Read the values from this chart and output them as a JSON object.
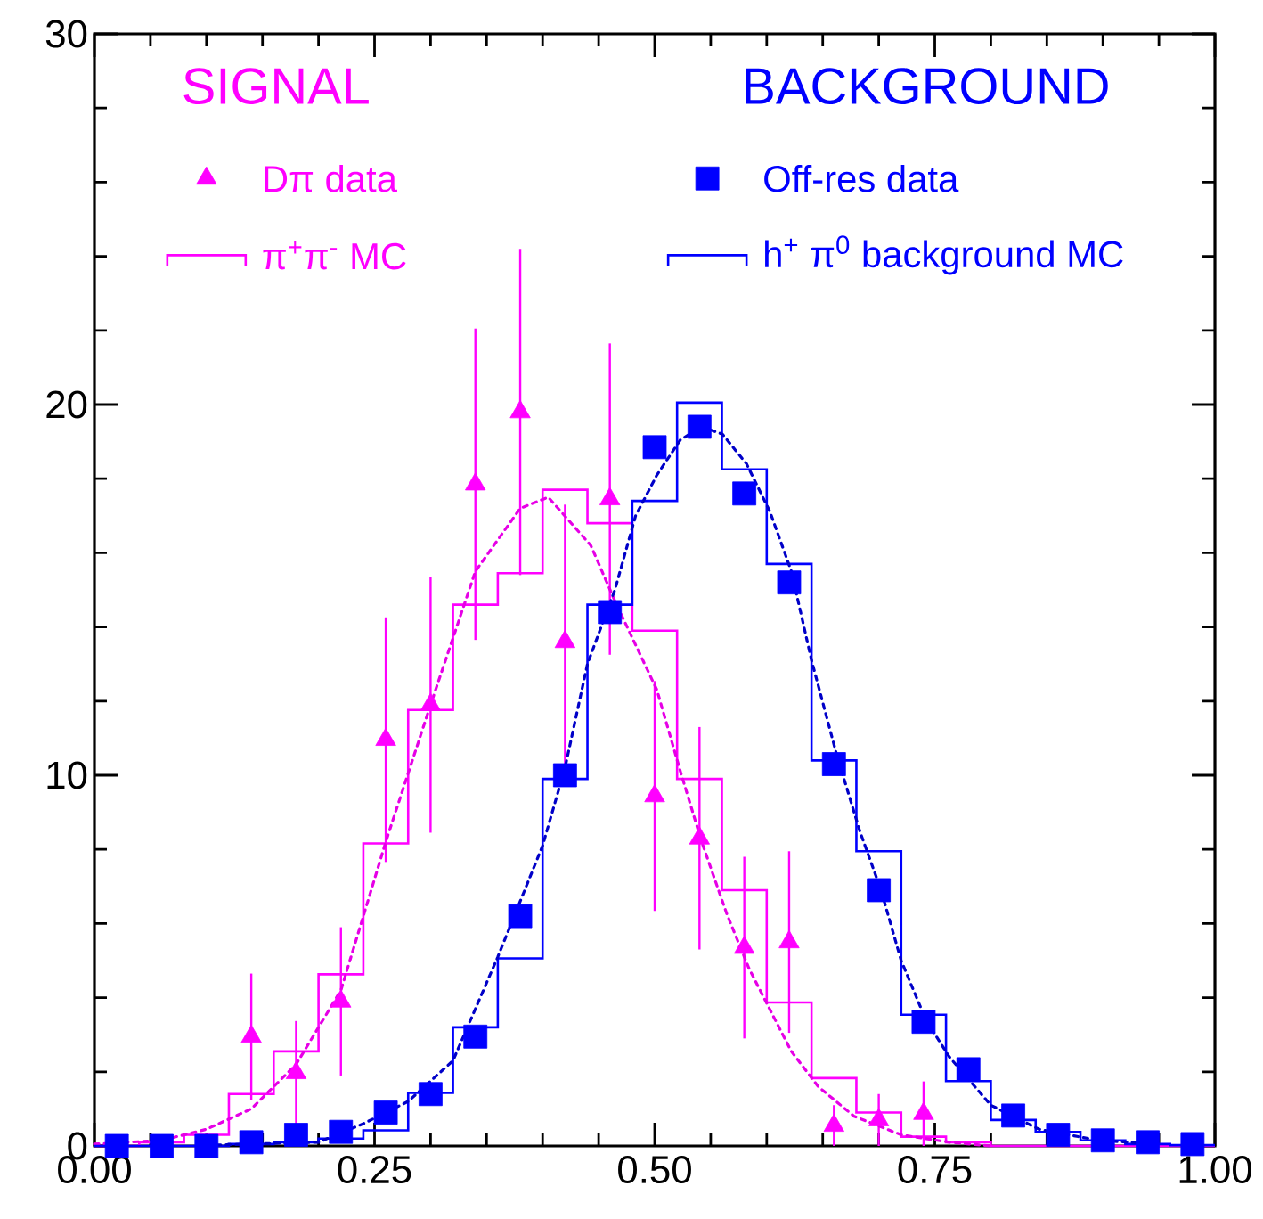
{
  "chart_data": {
    "type": "histogram",
    "bins": [
      0,
      0.04,
      0.08,
      0.12,
      0.16,
      0.2,
      0.24,
      0.28,
      0.32,
      0.36,
      0.4,
      0.44,
      0.48,
      0.52,
      0.56,
      0.6,
      0.64,
      0.68,
      0.72,
      0.76,
      0.8,
      0.84,
      0.88,
      0.92,
      0.96,
      1.0
    ],
    "series": [
      {
        "name": "Dπ data",
        "type": "scatter",
        "color": "#ff00ff",
        "marker": "triangle",
        "x": [
          0.14,
          0.18,
          0.22,
          0.26,
          0.3,
          0.34,
          0.38,
          0.42,
          0.46,
          0.5,
          0.54,
          0.58,
          0.62,
          0.66,
          0.7,
          0.74
        ],
        "values": [
          2.95,
          1.97,
          3.9,
          10.96,
          11.9,
          17.85,
          19.8,
          13.6,
          17.45,
          9.44,
          8.3,
          5.35,
          5.5,
          0.55,
          0.7,
          0.87
        ],
        "errors": [
          1.7,
          1.4,
          2.0,
          3.3,
          3.45,
          4.2,
          4.4,
          3.7,
          4.2,
          3.1,
          3.0,
          2.45,
          2.45,
          0.55,
          0.7,
          0.87
        ]
      },
      {
        "name": "π$^{+}$π$^{-}$ MC",
        "color": "#ff00ff",
        "values": [
          0,
          0.1,
          0.3,
          1.4,
          2.55,
          4.63,
          8.16,
          11.76,
          14.6,
          15.45,
          17.7,
          16.8,
          13.9,
          9.9,
          6.9,
          3.87,
          1.83,
          0.9,
          0.25,
          0.1,
          0,
          0,
          0,
          0,
          0
        ]
      },
      {
        "type": "line",
        "color": "#e600e6",
        "line_style": "dotted",
        "marker": "none",
        "x": [
          0.0,
          0.06,
          0.1,
          0.14,
          0.18,
          0.22,
          0.26,
          0.3,
          0.34,
          0.38,
          0.405,
          0.443,
          0.4645,
          0.502,
          0.523,
          0.542,
          0.5645,
          0.584,
          0.603,
          0.622,
          0.646,
          0.678,
          0.72,
          0.763,
          0.8
        ],
        "values": [
          0.05,
          0.15,
          0.45,
          1.0,
          2.2,
          4.2,
          8.2,
          11.9,
          15.5,
          17.2,
          17.5,
          16.2,
          14.7,
          12.3,
          10.1,
          8.2,
          6.25,
          4.8,
          3.67,
          2.55,
          1.6,
          0.8,
          0.3,
          0.1,
          0.0
        ]
      },
      {
        "name": "Off-res data",
        "type": "scatter",
        "color": "#0000ff",
        "marker": "square",
        "x": [
          0.02,
          0.06,
          0.1,
          0.14,
          0.18,
          0.22,
          0.26,
          0.3,
          0.34,
          0.38,
          0.42,
          0.46,
          0.5,
          0.54,
          0.58,
          0.62,
          0.66,
          0.7,
          0.74,
          0.78,
          0.82,
          0.86,
          0.9,
          0.94,
          0.98
        ],
        "values": [
          0,
          0,
          0,
          0.1,
          0.3,
          0.38,
          0.9,
          1.4,
          2.95,
          6.2,
          10.0,
          14.4,
          18.85,
          19.4,
          17.6,
          15.2,
          10.3,
          6.9,
          3.35,
          2.07,
          0.82,
          0.3,
          0.15,
          0.1,
          0.05
        ]
      },
      {
        "name": "h$^{+}$ π$^{0}$ background MC",
        "color": "#0000ff",
        "values": [
          0,
          0,
          0,
          0.05,
          0.1,
          0.2,
          0.42,
          1.43,
          3.2,
          5.06,
          9.9,
          14.6,
          17.4,
          20.05,
          18.25,
          15.7,
          10.4,
          7.95,
          3.54,
          1.75,
          0.7,
          0.38,
          0.15,
          0.05,
          0.02
        ]
      },
      {
        "type": "line",
        "color": "#0000c8",
        "line_style": "dotted",
        "marker": "none",
        "x": [
          0.1,
          0.2,
          0.24,
          0.28,
          0.32,
          0.36,
          0.4,
          0.42,
          0.44,
          0.4645,
          0.483,
          0.502,
          0.523,
          0.542,
          0.5605,
          0.582,
          0.603,
          0.622,
          0.64,
          0.662,
          0.683,
          0.702,
          0.72,
          0.742,
          0.763,
          0.8,
          0.843,
          0.896,
          0.95
        ],
        "values": [
          0.02,
          0.1,
          0.6,
          1.2,
          2.3,
          5.1,
          8.1,
          10.2,
          13.0,
          15.0,
          17.0,
          18.1,
          19.05,
          19.4,
          19.2,
          18.4,
          17.1,
          15.5,
          13.1,
          10.6,
          8.5,
          6.9,
          5.0,
          3.4,
          2.4,
          1.1,
          0.45,
          0.15,
          0.05
        ]
      }
    ],
    "annotations": [
      "SIGNAL",
      "BACKGROUND"
    ],
    "legend": "top",
    "xlim": [
      0,
      1
    ],
    "ylim": [
      0,
      30
    ],
    "xticks": [
      {
        "value": 0,
        "label": "0.00"
      },
      0.25,
      {
        "value": 0.5,
        "label": "0.50"
      },
      0.75,
      {
        "value": 1,
        "label": "1.00"
      }
    ],
    "yticks": [
      0,
      10,
      20,
      30
    ]
  }
}
